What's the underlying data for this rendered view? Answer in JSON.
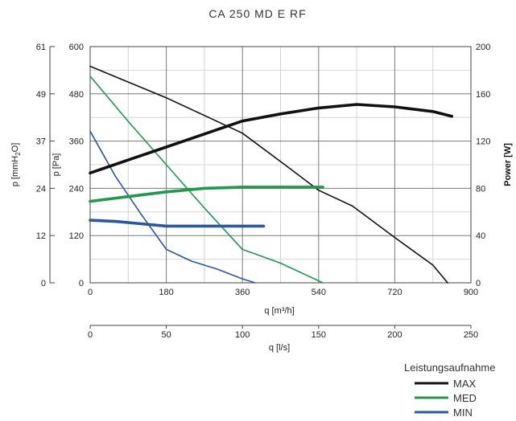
{
  "chart_data": {
    "type": "line",
    "title": "CA 250 MD E RF",
    "x_primary": {
      "label": "q [m³/h]",
      "range": [
        0,
        900
      ],
      "ticks": [
        0,
        180,
        360,
        540,
        720,
        900
      ]
    },
    "x_secondary": {
      "label": "q [l/s]",
      "range": [
        0,
        250
      ],
      "ticks": [
        0,
        50,
        100,
        150,
        200,
        250
      ]
    },
    "y_pressure": {
      "label": "p [Pa]",
      "range": [
        0,
        600
      ],
      "ticks": [
        0,
        120,
        240,
        360,
        480,
        600
      ]
    },
    "y_mmh2o": {
      "label_main": "p [mmH",
      "label_sub": "2",
      "label_end": "O]",
      "range": [
        0,
        61
      ],
      "ticks": [
        0,
        12,
        24,
        37,
        49,
        61
      ]
    },
    "y_power": {
      "label": "Power [W]",
      "range": [
        0,
        200
      ],
      "ticks": [
        0,
        40,
        80,
        120,
        160,
        200
      ]
    },
    "grid": true,
    "legend": {
      "title": "Leistungsaufnahme",
      "position": "bottom-right",
      "entries": [
        {
          "label": "MAX",
          "color": "#111111"
        },
        {
          "label": "MED",
          "color": "#1f9a4a"
        },
        {
          "label": "MIN",
          "color": "#2459a8"
        }
      ]
    },
    "series": [
      {
        "name": "MAX",
        "kind": "pressure",
        "color": "#111111",
        "x": [
          0,
          180,
          360,
          460,
          540,
          620,
          720,
          810,
          845
        ],
        "y": [
          550,
          470,
          380,
          300,
          235,
          195,
          115,
          45,
          0
        ]
      },
      {
        "name": "MED",
        "kind": "pressure",
        "color": "#1f9a4a",
        "x": [
          0,
          90,
          180,
          270,
          360,
          450,
          550
        ],
        "y": [
          525,
          410,
          300,
          190,
          85,
          50,
          0
        ]
      },
      {
        "name": "MIN",
        "kind": "pressure",
        "color": "#2459a8",
        "x": [
          0,
          60,
          120,
          180,
          240,
          300,
          360,
          390
        ],
        "y": [
          385,
          270,
          175,
          85,
          55,
          35,
          10,
          0
        ]
      },
      {
        "name": "MAX",
        "kind": "power",
        "color": "#111111",
        "x": [
          0,
          90,
          180,
          270,
          360,
          450,
          540,
          630,
          720,
          810,
          855
        ],
        "y": [
          93,
          104,
          115,
          126,
          137,
          143,
          148,
          151,
          149,
          145,
          141
        ]
      },
      {
        "name": "MED",
        "kind": "power",
        "color": "#1f9a4a",
        "x": [
          0,
          90,
          180,
          270,
          360,
          450,
          550
        ],
        "y": [
          69,
          73,
          77,
          80,
          81,
          81,
          81
        ]
      },
      {
        "name": "MIN",
        "kind": "power",
        "color": "#2459a8",
        "x": [
          0,
          60,
          120,
          180,
          240,
          300,
          360,
          410
        ],
        "y": [
          53,
          52,
          50,
          48,
          48,
          48,
          48,
          48
        ]
      }
    ]
  }
}
